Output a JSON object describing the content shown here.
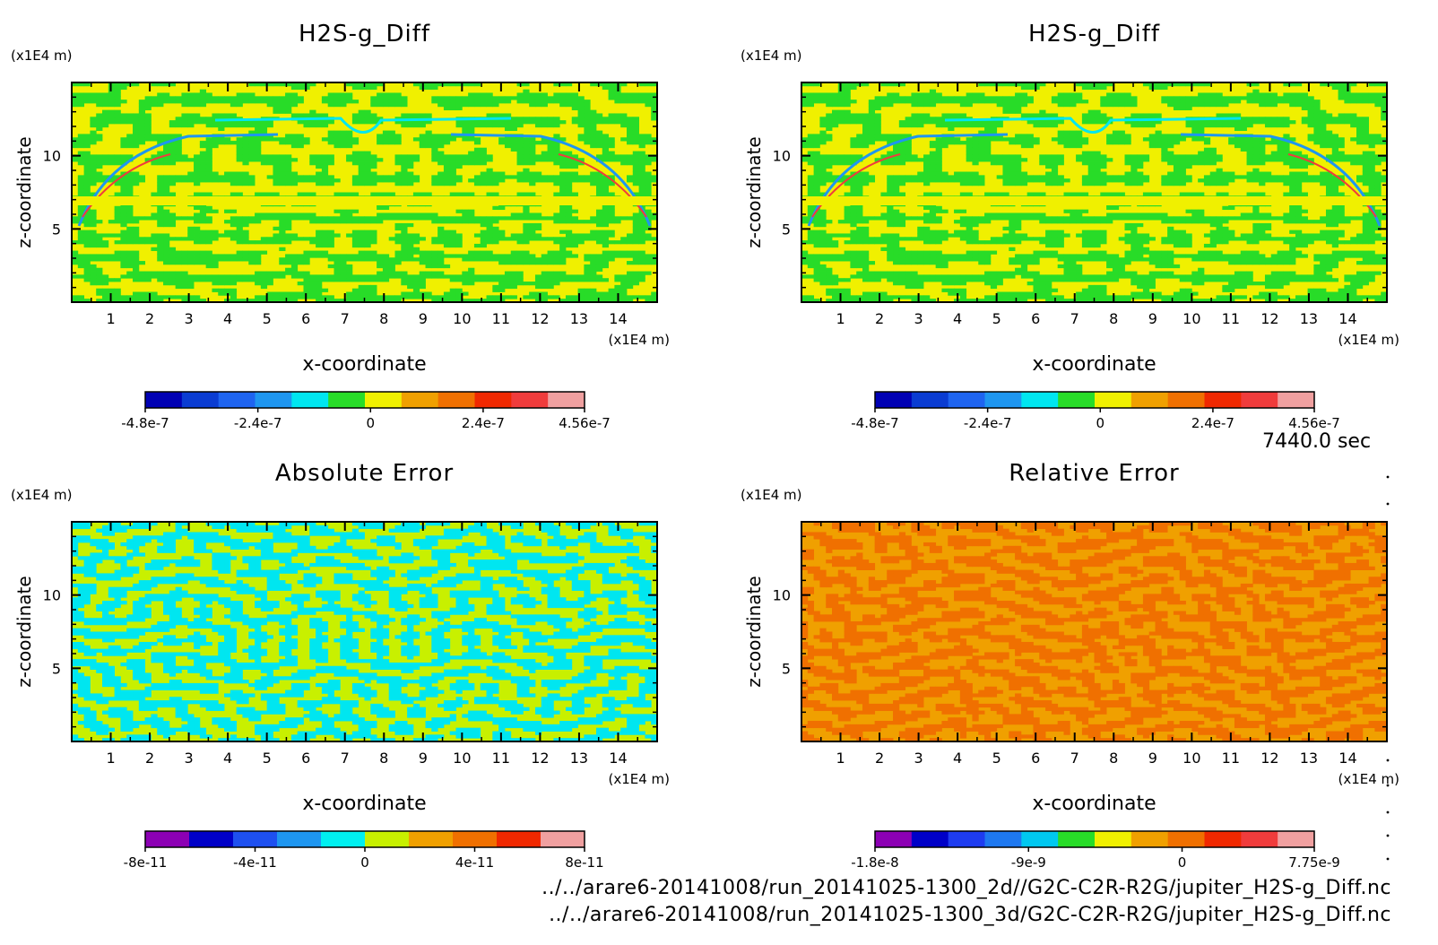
{
  "time_label": "7440.0 sec",
  "footer": {
    "line1": "../../arare6-20141008/run_20141025-1300_2d//G2C-C2R-R2G/jupiter_H2S-g_Diff.nc",
    "line2": "../../arare6-20141008/run_20141025-1300_3d/G2C-C2R-R2G/jupiter_H2S-g_Diff.nc"
  },
  "chart_data": [
    {
      "type": "heatmap",
      "title": "H2S-g_Diff",
      "xlabel": "x-coordinate",
      "ylabel": "z-coordinate",
      "x_unit": "(x1E4 m)",
      "y_unit": "(x1E4 m)",
      "xlim": [
        0,
        15
      ],
      "ylim": [
        0,
        15
      ],
      "xticks": [
        1,
        2,
        3,
        4,
        5,
        6,
        7,
        8,
        9,
        10,
        11,
        12,
        13,
        14
      ],
      "yticks": [
        5,
        10
      ],
      "colorbar": {
        "colors": [
          "#0000b4",
          "#0a3cd2",
          "#1e64f0",
          "#1e96f0",
          "#00e6f0",
          "#28dc28",
          "#f0f000",
          "#f0a000",
          "#f07000",
          "#f02800",
          "#f03c3c",
          "#f0a0a0"
        ],
        "tick_labels": [
          "-4.8e-7",
          "-2.4e-7",
          "0",
          "2.4e-7",
          "4.56e-7"
        ],
        "tick_values": [
          -4.8e-07,
          -2.4e-07,
          0,
          2.4e-07,
          4.56e-07
        ]
      },
      "pattern": "diff",
      "fill_colors": [
        "#28dc28",
        "#f0f000"
      ]
    },
    {
      "type": "heatmap",
      "title": "H2S-g_Diff",
      "xlabel": "x-coordinate",
      "ylabel": "z-coordinate",
      "x_unit": "(x1E4 m)",
      "y_unit": "(x1E4 m)",
      "xlim": [
        0,
        15
      ],
      "ylim": [
        0,
        15
      ],
      "xticks": [
        1,
        2,
        3,
        4,
        5,
        6,
        7,
        8,
        9,
        10,
        11,
        12,
        13,
        14
      ],
      "yticks": [
        5,
        10
      ],
      "colorbar": {
        "colors": [
          "#0000b4",
          "#0a3cd2",
          "#1e64f0",
          "#1e96f0",
          "#00e6f0",
          "#28dc28",
          "#f0f000",
          "#f0a000",
          "#f07000",
          "#f02800",
          "#f03c3c",
          "#f0a0a0"
        ],
        "tick_labels": [
          "-4.8e-7",
          "-2.4e-7",
          "0",
          "2.4e-7",
          "4.56e-7"
        ],
        "tick_values": [
          -4.8e-07,
          -2.4e-07,
          0,
          2.4e-07,
          4.56e-07
        ]
      },
      "pattern": "diff",
      "fill_colors": [
        "#28dc28",
        "#f0f000"
      ]
    },
    {
      "type": "heatmap",
      "title": "Absolute Error",
      "xlabel": "x-coordinate",
      "ylabel": "z-coordinate",
      "x_unit": "(x1E4 m)",
      "y_unit": "(x1E4 m)",
      "xlim": [
        0,
        15
      ],
      "ylim": [
        0,
        15
      ],
      "xticks": [
        1,
        2,
        3,
        4,
        5,
        6,
        7,
        8,
        9,
        10,
        11,
        12,
        13,
        14
      ],
      "yticks": [
        5,
        10
      ],
      "colorbar": {
        "colors": [
          "#8c00b4",
          "#0000c8",
          "#1e50f0",
          "#1e96f0",
          "#00f0f0",
          "#c8f000",
          "#f0a000",
          "#f07000",
          "#f02800",
          "#f0a0a0"
        ],
        "tick_labels": [
          "-8e-11",
          "-4e-11",
          "0",
          "4e-11",
          "8e-11"
        ],
        "tick_values": [
          -8e-11,
          -4e-11,
          0,
          4e-11,
          8e-11
        ]
      },
      "pattern": "abs",
      "fill_colors": [
        "#00e6f0",
        "#c8f000"
      ]
    },
    {
      "type": "heatmap",
      "title": "Relative Error",
      "xlabel": "x-coordinate",
      "ylabel": "z-coordinate",
      "x_unit": "(x1E4 m)",
      "y_unit": "(x1E4 m)",
      "xlim": [
        0,
        15
      ],
      "ylim": [
        0,
        15
      ],
      "xticks": [
        1,
        2,
        3,
        4,
        5,
        6,
        7,
        8,
        9,
        10,
        11,
        12,
        13,
        14
      ],
      "yticks": [
        5,
        10
      ],
      "colorbar": {
        "colors": [
          "#8c00b4",
          "#0000c8",
          "#1e3cf0",
          "#1e78f0",
          "#00c8f0",
          "#28dc28",
          "#f0f000",
          "#f0a000",
          "#f07000",
          "#f02800",
          "#f03c3c",
          "#f0a0a0"
        ],
        "tick_labels": [
          "-1.8e-8",
          "-9e-9",
          "0",
          "7.75e-9"
        ],
        "tick_values": [
          -1.8e-08,
          -9e-09,
          0,
          7.75e-09
        ]
      },
      "pattern": "rel",
      "fill_colors": [
        "#f07000",
        "#f0a000"
      ]
    }
  ]
}
